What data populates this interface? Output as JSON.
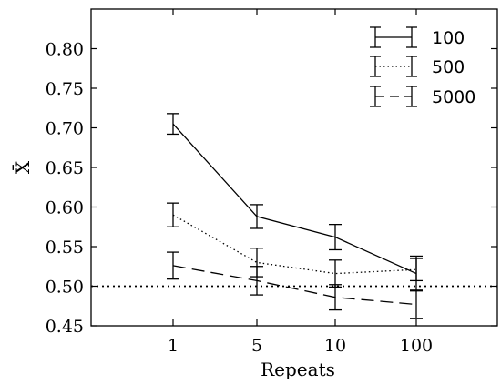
{
  "chart_data": {
    "type": "line",
    "title": "",
    "xlabel": "Repeats",
    "ylabel": "X̄",
    "categories": [
      "1",
      "5",
      "10",
      "100"
    ],
    "ylim": [
      0.45,
      0.85
    ],
    "yticks": [
      "0.45",
      "0.50",
      "0.55",
      "0.60",
      "0.65",
      "0.70",
      "0.75",
      "0.80"
    ],
    "grid": false,
    "legend_position": "top-right",
    "reference_line": {
      "y": 0.5,
      "style": "dotted"
    },
    "series": [
      {
        "name": "100",
        "style": "solid",
        "values": [
          0.705,
          0.588,
          0.562,
          0.516
        ],
        "errors": [
          0.013,
          0.015,
          0.016,
          0.022
        ]
      },
      {
        "name": "500",
        "style": "dotted",
        "values": [
          0.59,
          0.53,
          0.516,
          0.521
        ],
        "errors": [
          0.015,
          0.018,
          0.017,
          0.014
        ]
      },
      {
        "name": "5000",
        "style": "dashed",
        "values": [
          0.526,
          0.507,
          0.486,
          0.477
        ],
        "errors": [
          0.017,
          0.018,
          0.016,
          0.018
        ]
      }
    ]
  }
}
